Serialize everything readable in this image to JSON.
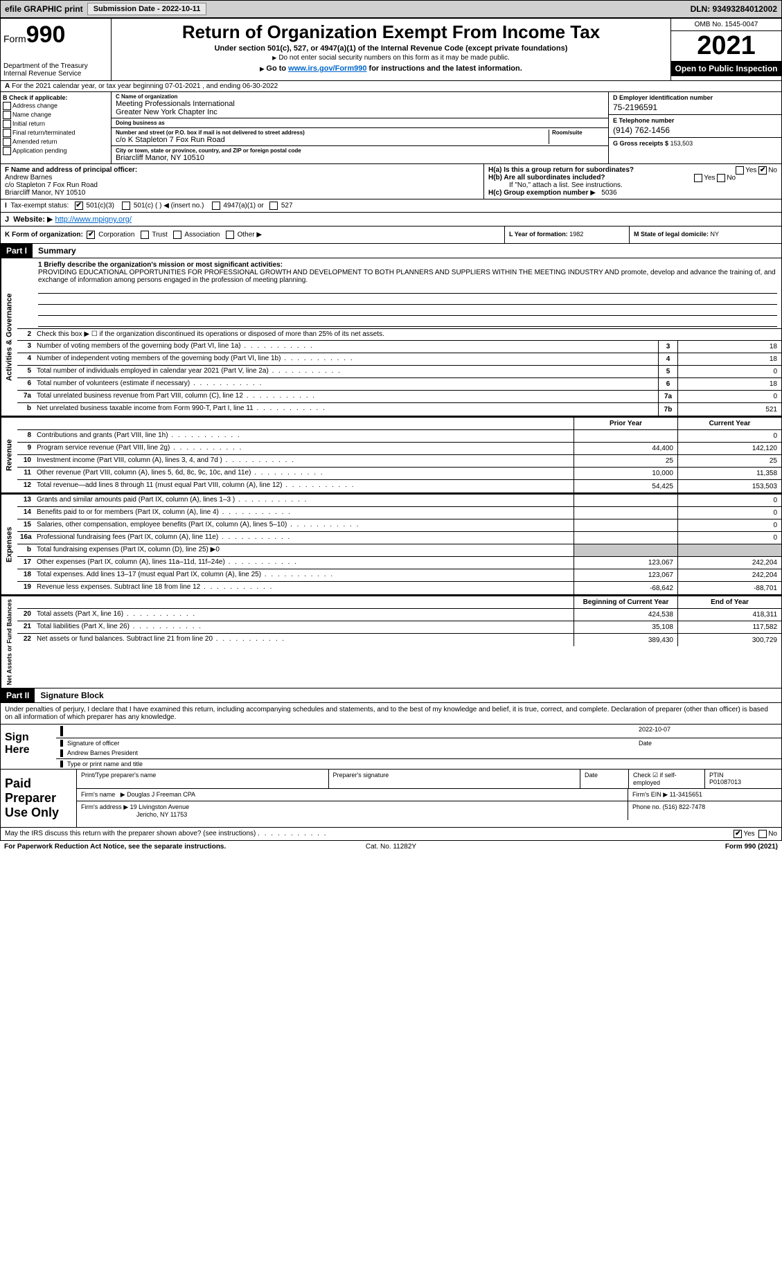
{
  "topbar": {
    "efile": "efile GRAPHIC print",
    "submission_btn": "Submission Date - 2022-10-11",
    "dln": "DLN: 93493284012002"
  },
  "header": {
    "form_label": "Form",
    "form_num": "990",
    "dept1": "Department of the Treasury",
    "dept2": "Internal Revenue Service",
    "title": "Return of Organization Exempt From Income Tax",
    "subtitle": "Under section 501(c), 527, or 4947(a)(1) of the Internal Revenue Code (except private foundations)",
    "note1": "Do not enter social security numbers on this form as it may be made public.",
    "note2_pre": "Go to ",
    "note2_link": "www.irs.gov/Form990",
    "note2_post": " for instructions and the latest information.",
    "omb": "OMB No. 1545-0047",
    "year": "2021",
    "open": "Open to Public Inspection"
  },
  "line_a": "For the 2021 calendar year, or tax year beginning 07-01-2021     , and ending 06-30-2022",
  "col_b": {
    "hdr": "B Check if applicable:",
    "items": [
      "Address change",
      "Name change",
      "Initial return",
      "Final return/terminated",
      "Amended return",
      "Application pending"
    ]
  },
  "col_c": {
    "name_lbl": "C Name of organization",
    "name": "Meeting Professionals International\nGreater New York Chapter Inc",
    "dba_lbl": "Doing business as",
    "dba": "",
    "addr_lbl": "Number and street (or P.O. box if mail is not delivered to street address)",
    "room_lbl": "Room/suite",
    "addr": "c/o K Stapleton 7 Fox Run Road",
    "city_lbl": "City or town, state or province, country, and ZIP or foreign postal code",
    "city": "Briarcliff Manor, NY  10510"
  },
  "col_d": {
    "ein_lbl": "D Employer identification number",
    "ein": "75-2196591",
    "tel_lbl": "E Telephone number",
    "tel": "(914) 762-1456",
    "gross_lbl": "G Gross receipts $",
    "gross": "153,503"
  },
  "row_f": {
    "lbl": "F  Name and address of principal officer:",
    "name": "Andrew Barnes",
    "addr1": "c/o Stapleton 7 Fox Run Road",
    "addr2": "Briarcliff Manor, NY  10510"
  },
  "row_h": {
    "ha": "H(a)  Is this a group return for subordinates?",
    "hb": "H(b)  Are all subordinates included?",
    "hb_note": "If \"No,\" attach a list. See instructions.",
    "hc": "H(c)  Group exemption number",
    "hc_val": "5036"
  },
  "row_i": {
    "lbl": "Tax-exempt status:",
    "opts": [
      "501(c)(3)",
      "501(c) (  ) ◀ (insert no.)",
      "4947(a)(1) or",
      "527"
    ]
  },
  "row_j": {
    "lbl": "Website:",
    "url": "http://www.mpigny.org/"
  },
  "row_k": "K Form of organization:",
  "row_k_opts": [
    "Corporation",
    "Trust",
    "Association",
    "Other"
  ],
  "row_l": {
    "lbl": "L Year of formation:",
    "val": "1982"
  },
  "row_m": {
    "lbl": "M State of legal domicile:",
    "val": "NY"
  },
  "part1": {
    "hdr": "Part I",
    "title": "Summary"
  },
  "mission_lbl": "1  Briefly describe the organization's mission or most significant activities:",
  "mission_txt": "PROVIDING EDUCATIONAL OPPORTUNITIES FOR PROFESSIONAL GROWTH AND DEVELOPMENT TO BOTH PLANNERS AND SUPPLIERS WITHIN THE MEETING INDUSTRY AND promote, develop and advance the training of, and exchange of information among persons engaged in the profession of meeting planning.",
  "line2": "Check this box ▶ ☐ if the organization discontinued its operations or disposed of more than 25% of its net assets.",
  "governance": [
    {
      "n": "3",
      "t": "Number of voting members of the governing body (Part VI, line 1a)",
      "b": "3",
      "v": "18"
    },
    {
      "n": "4",
      "t": "Number of independent voting members of the governing body (Part VI, line 1b)",
      "b": "4",
      "v": "18"
    },
    {
      "n": "5",
      "t": "Total number of individuals employed in calendar year 2021 (Part V, line 2a)",
      "b": "5",
      "v": "0"
    },
    {
      "n": "6",
      "t": "Total number of volunteers (estimate if necessary)",
      "b": "6",
      "v": "18"
    },
    {
      "n": "7a",
      "t": "Total unrelated business revenue from Part VIII, column (C), line 12",
      "b": "7a",
      "v": "0"
    },
    {
      "n": "b",
      "t": "Net unrelated business taxable income from Form 990-T, Part I, line 11",
      "b": "7b",
      "v": "521"
    }
  ],
  "col_hdrs": {
    "prior": "Prior Year",
    "current": "Current Year"
  },
  "revenue": [
    {
      "n": "8",
      "t": "Contributions and grants (Part VIII, line 1h)",
      "p": "",
      "c": "0"
    },
    {
      "n": "9",
      "t": "Program service revenue (Part VIII, line 2g)",
      "p": "44,400",
      "c": "142,120"
    },
    {
      "n": "10",
      "t": "Investment income (Part VIII, column (A), lines 3, 4, and 7d )",
      "p": "25",
      "c": "25"
    },
    {
      "n": "11",
      "t": "Other revenue (Part VIII, column (A), lines 5, 6d, 8c, 9c, 10c, and 11e)",
      "p": "10,000",
      "c": "11,358"
    },
    {
      "n": "12",
      "t": "Total revenue—add lines 8 through 11 (must equal Part VIII, column (A), line 12)",
      "p": "54,425",
      "c": "153,503"
    }
  ],
  "expenses": [
    {
      "n": "13",
      "t": "Grants and similar amounts paid (Part IX, column (A), lines 1–3 )",
      "p": "",
      "c": "0"
    },
    {
      "n": "14",
      "t": "Benefits paid to or for members (Part IX, column (A), line 4)",
      "p": "",
      "c": "0"
    },
    {
      "n": "15",
      "t": "Salaries, other compensation, employee benefits (Part IX, column (A), lines 5–10)",
      "p": "",
      "c": "0"
    },
    {
      "n": "16a",
      "t": "Professional fundraising fees (Part IX, column (A), line 11e)",
      "p": "",
      "c": "0"
    },
    {
      "n": "b",
      "t": "Total fundraising expenses (Part IX, column (D), line 25) ▶0",
      "p": null,
      "c": null
    },
    {
      "n": "17",
      "t": "Other expenses (Part IX, column (A), lines 11a–11d, 11f–24e)",
      "p": "123,067",
      "c": "242,204"
    },
    {
      "n": "18",
      "t": "Total expenses. Add lines 13–17 (must equal Part IX, column (A), line 25)",
      "p": "123,067",
      "c": "242,204"
    },
    {
      "n": "19",
      "t": "Revenue less expenses. Subtract line 18 from line 12",
      "p": "-68,642",
      "c": "-88,701"
    }
  ],
  "net_hdrs": {
    "begin": "Beginning of Current Year",
    "end": "End of Year"
  },
  "netassets": [
    {
      "n": "20",
      "t": "Total assets (Part X, line 16)",
      "p": "424,538",
      "c": "418,311"
    },
    {
      "n": "21",
      "t": "Total liabilities (Part X, line 26)",
      "p": "35,108",
      "c": "117,582"
    },
    {
      "n": "22",
      "t": "Net assets or fund balances. Subtract line 21 from line 20",
      "p": "389,430",
      "c": "300,729"
    }
  ],
  "part2": {
    "hdr": "Part II",
    "title": "Signature Block"
  },
  "penalties": "Under penalties of perjury, I declare that I have examined this return, including accompanying schedules and statements, and to the best of my knowledge and belief, it is true, correct, and complete. Declaration of preparer (other than officer) is based on all information of which preparer has any knowledge.",
  "sign": {
    "lbl": "Sign Here",
    "sig_lbl": "Signature of officer",
    "date": "2022-10-07",
    "date_lbl": "Date",
    "name": "Andrew Barnes  President",
    "name_lbl": "Type or print name and title"
  },
  "prep": {
    "lbl": "Paid Preparer Use Only",
    "print_lbl": "Print/Type preparer's name",
    "sig_lbl": "Preparer's signature",
    "date_lbl": "Date",
    "check_lbl": "Check ☑ if self-employed",
    "ptin_lbl": "PTIN",
    "ptin": "P01087013",
    "firm_name_lbl": "Firm's name",
    "firm_name": "Douglas J Freeman CPA",
    "firm_ein_lbl": "Firm's EIN",
    "firm_ein": "11-3415651",
    "firm_addr_lbl": "Firm's address",
    "firm_addr1": "19 Livingston Avenue",
    "firm_addr2": "Jericho, NY  11753",
    "phone_lbl": "Phone no.",
    "phone": "(516) 822-7478"
  },
  "discuss": "May the IRS discuss this return with the preparer shown above? (see instructions)",
  "bottom": {
    "l": "For Paperwork Reduction Act Notice, see the separate instructions.",
    "c": "Cat. No. 11282Y",
    "r": "Form 990 (2021)"
  }
}
